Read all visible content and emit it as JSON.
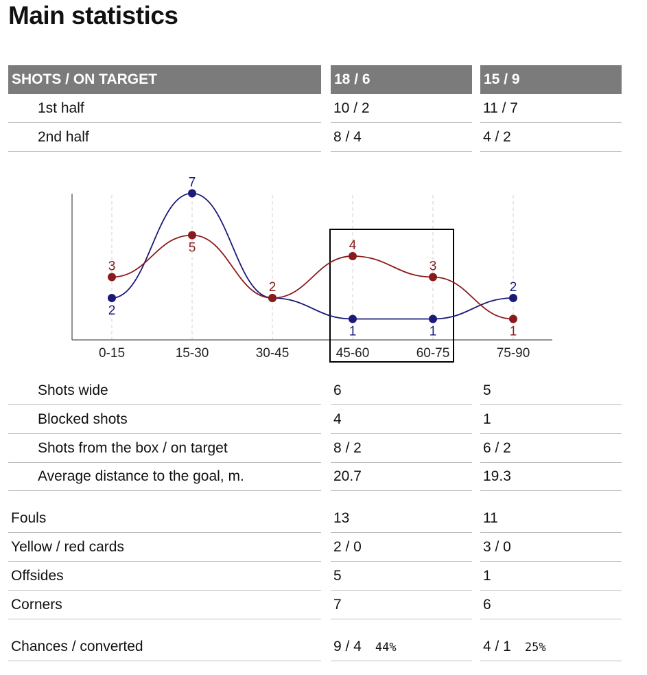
{
  "page": {
    "title": "Main statistics"
  },
  "shots_table": {
    "header": {
      "label": "SHOTS / ON TARGET",
      "team1": "18 / 6",
      "team2": "15 / 9"
    },
    "rows": [
      {
        "label": "1st half",
        "team1": "10 / 2",
        "team2": "11 / 7"
      },
      {
        "label": "2nd half",
        "team1": "8 / 4",
        "team2": "4 / 2"
      }
    ]
  },
  "details_rows": [
    {
      "label": "Shots wide",
      "team1": "6",
      "team2": "5"
    },
    {
      "label": "Blocked shots",
      "team1": "4",
      "team2": "1"
    },
    {
      "label": "Shots from the box / on target",
      "team1": "8 / 2",
      "team2": "6 / 2"
    },
    {
      "label": "Average distance to the goal, m.",
      "team1": "20.7",
      "team2": "19.3"
    }
  ],
  "misc_rows": [
    {
      "label": "Fouls",
      "team1": "13",
      "team2": "11"
    },
    {
      "label": "Yellow / red cards",
      "team1": "2 / 0",
      "team2": "3 / 0"
    },
    {
      "label": "Offsides",
      "team1": "5",
      "team2": "1"
    },
    {
      "label": "Corners",
      "team1": "7",
      "team2": "6"
    }
  ],
  "chances_row": {
    "label": "Chances / converted",
    "team1": "9 / 4",
    "team1_pct": "44%",
    "team2": "4 / 1",
    "team2_pct": "25%"
  },
  "chart_data": {
    "type": "line",
    "title": "",
    "xlabel": "",
    "ylabel": "",
    "categories": [
      "0-15",
      "15-30",
      "30-45",
      "45-60",
      "60-75",
      "75-90"
    ],
    "series": [
      {
        "color": "#1a1a7a",
        "values": [
          2,
          7,
          2,
          1,
          1,
          2
        ]
      },
      {
        "color": "#8b1a1a",
        "values": [
          3,
          5,
          2,
          4,
          3,
          1
        ]
      }
    ],
    "ylim": [
      0,
      7
    ],
    "grid": "vertical dashed",
    "highlight": {
      "from": "45-60",
      "to": "60-75"
    }
  }
}
